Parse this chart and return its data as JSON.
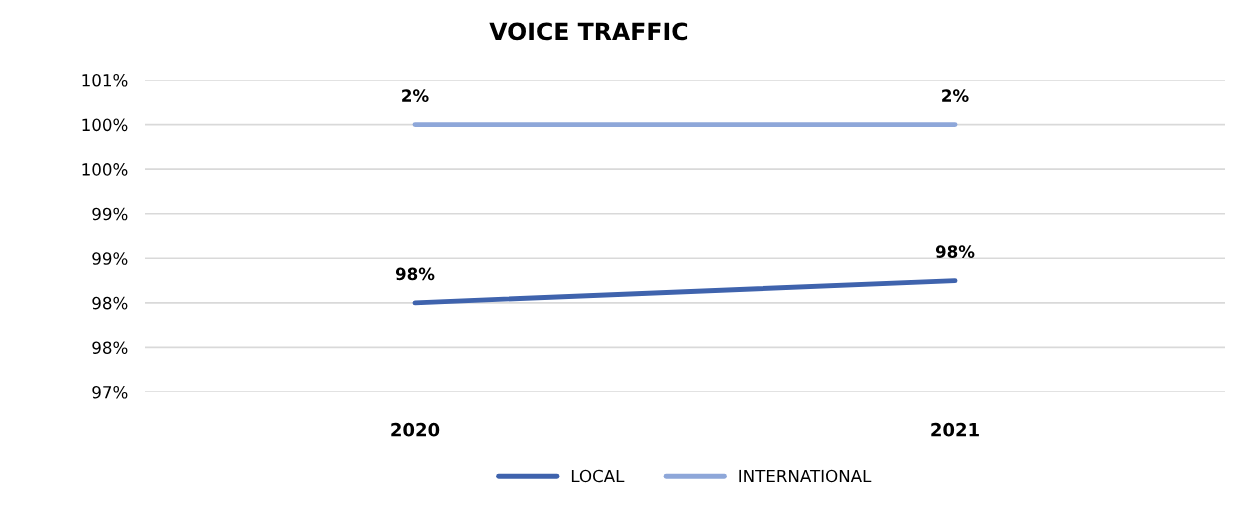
{
  "chart_data": {
    "type": "line",
    "title": "VOICE TRAFFIC",
    "categories": [
      "2020",
      "2021"
    ],
    "series": [
      {
        "name": "LOCAL",
        "color": "#3f63ad",
        "values": [
          98.0,
          98.25
        ],
        "value_labels": [
          "98%",
          "98%"
        ]
      },
      {
        "name": "INTERNATIONAL",
        "color": "#8ea7d9",
        "values": [
          100.0,
          100.0
        ]
      }
    ],
    "ylim": [
      97,
      100.5
    ],
    "yticks": [
      {
        "value": 97,
        "label": "97%"
      },
      {
        "value": 97.5,
        "label": "98%"
      },
      {
        "value": 98,
        "label": "98%"
      },
      {
        "value": 98.5,
        "label": "99%"
      },
      {
        "value": 99,
        "label": "99%"
      },
      {
        "value": 99.5,
        "label": "100%"
      },
      {
        "value": 100,
        "label": "100%"
      },
      {
        "value": 100.5,
        "label": "101%"
      }
    ],
    "annotations": [
      "2%",
      "2%"
    ],
    "grid": "y",
    "legend": "bottom",
    "marker": "none",
    "line_style": "solid"
  }
}
